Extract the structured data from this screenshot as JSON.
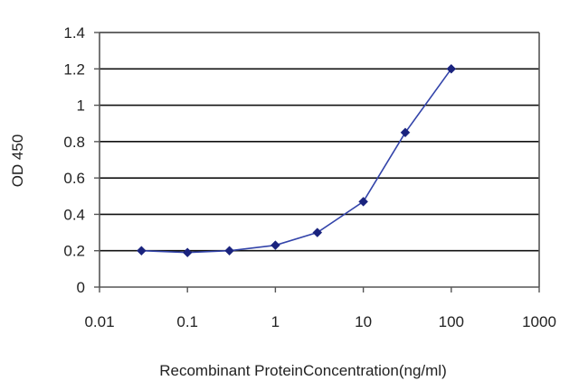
{
  "chart_data": {
    "type": "line",
    "title": "",
    "xlabel": "Recombinant ProteinConcentration(ng/ml)",
    "ylabel": "OD 450",
    "xscale": "log",
    "xlim": [
      0.01,
      1000
    ],
    "ylim": [
      0,
      1.4
    ],
    "x_ticks": [
      "0.01",
      "0.1",
      "1",
      "10",
      "100",
      "1000"
    ],
    "y_ticks": [
      "0",
      "0.2",
      "0.4",
      "0.6",
      "0.8",
      "1",
      "1.2",
      "1.4"
    ],
    "grid": "horizontal",
    "legend": "none",
    "series": [
      {
        "x": [
          0.03,
          0.1,
          0.3,
          1,
          3,
          10,
          30,
          100
        ],
        "y": [
          0.2,
          0.19,
          0.2,
          0.23,
          0.3,
          0.47,
          0.85,
          1.2
        ]
      }
    ],
    "colors": {
      "line": "#3344aa",
      "marker": "#1a237e",
      "grid": "#111111",
      "axis": "#555555"
    }
  }
}
